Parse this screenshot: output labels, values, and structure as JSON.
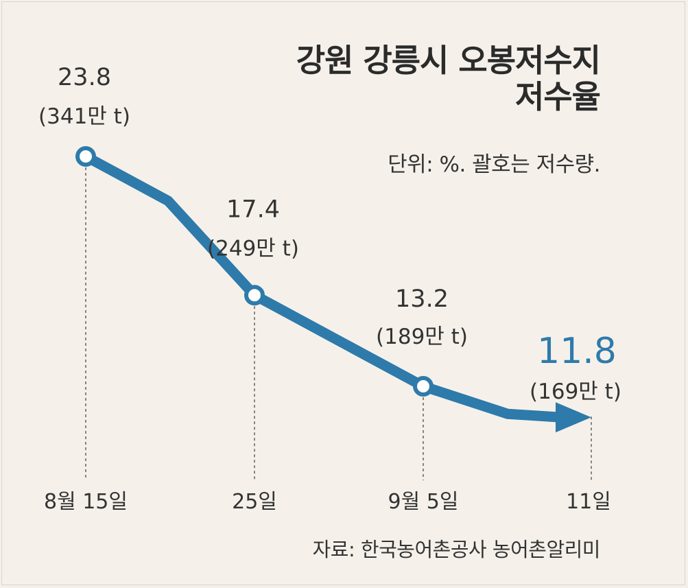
{
  "title_lines": [
    "강원 강릉시 오봉저수지",
    "저수율"
  ],
  "unit_note": "단위: %. 괄호는 저수량.",
  "source": "자료: 한국농어촌공사 농어촌알리미",
  "colors": {
    "line": "#2e7aab",
    "text": "#333333",
    "background": "#f5f1ea"
  },
  "chart_data": {
    "type": "line",
    "title": "강원 강릉시 오봉저수지 저수율",
    "xlabel": "",
    "ylabel": "",
    "x": [
      "8월 15일",
      "25일",
      "9월 5일",
      "11일"
    ],
    "series": [
      {
        "values": [
          23.8,
          17.4,
          13.2,
          11.8
        ],
        "labels": [
          "23.8",
          "17.4",
          "13.2",
          "11.8"
        ],
        "volumes": [
          "(341만 t)",
          "(249만 t)",
          "(189만 t)",
          "(169만 t)"
        ]
      }
    ],
    "highlight_last": true,
    "grid": false,
    "legend": "none"
  }
}
